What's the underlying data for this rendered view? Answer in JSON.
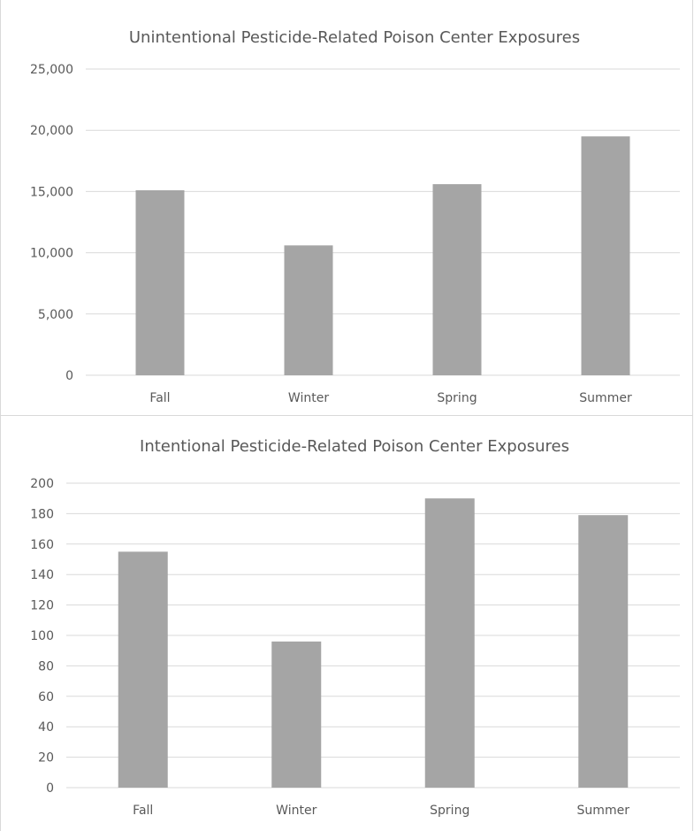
{
  "colors": {
    "bar": "#a5a5a5",
    "grid": "#d9d9d9",
    "text": "#595959"
  },
  "chart_data": [
    {
      "type": "bar",
      "title": "Unintentional Pesticide-Related Poison Center Exposures",
      "categories": [
        "Fall",
        "Winter",
        "Spring",
        "Summer"
      ],
      "values": [
        15100,
        10600,
        15600,
        19500
      ],
      "ylim": [
        0,
        25000
      ],
      "yticks": [
        "0",
        "5,000",
        "10,000",
        "15,000",
        "20,000",
        "25,000"
      ],
      "xlabel": "",
      "ylabel": "",
      "grid": true,
      "legend": "none"
    },
    {
      "type": "bar",
      "title": "Intentional Pesticide-Related Poison Center Exposures",
      "categories": [
        "Fall",
        "Winter",
        "Spring",
        "Summer"
      ],
      "values": [
        155,
        96,
        190,
        179
      ],
      "ylim": [
        0,
        200
      ],
      "yticks": [
        "0",
        "20",
        "40",
        "60",
        "80",
        "100",
        "120",
        "140",
        "160",
        "180",
        "200"
      ],
      "xlabel": "",
      "ylabel": "",
      "grid": true,
      "legend": "none"
    }
  ]
}
